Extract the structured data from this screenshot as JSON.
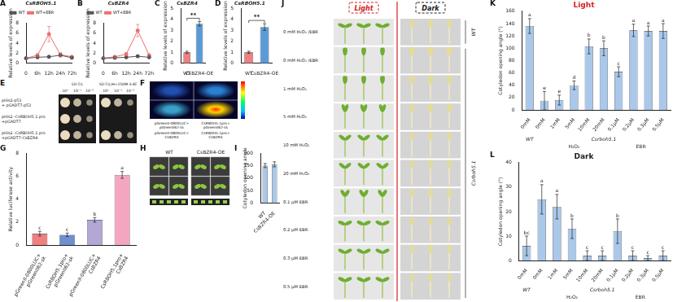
{
  "chart_data": [
    {
      "panel": "A",
      "type": "line",
      "title": "CsRBOH5.1",
      "categories": [
        "0",
        "6h",
        "12h",
        "24h",
        "72h"
      ],
      "y_label": "Relative levels of expression",
      "series": [
        {
          "name": "WT",
          "color": "#555555",
          "marker": "circle",
          "values": [
            1,
            1.2,
            1.3,
            1.6,
            1.1
          ],
          "errors": [
            0.1,
            0.2,
            0.2,
            0.3,
            0.2
          ]
        },
        {
          "name": "WT+EBR",
          "color": "#e8706e",
          "marker": "circle",
          "values": [
            1,
            1.6,
            5.8,
            1.7,
            1.3
          ],
          "errors": [
            0.1,
            0.3,
            1.5,
            0.4,
            0.2
          ]
        }
      ],
      "ylim": [
        0,
        8
      ],
      "yticks": [
        0,
        2,
        4,
        6,
        8
      ],
      "legend": "top",
      "grid": false
    },
    {
      "panel": "B",
      "type": "line",
      "title": "CsBZR4",
      "categories": [
        "0",
        "6h",
        "12h",
        "24h",
        "72h"
      ],
      "y_label": "Relative levels of expression",
      "series": [
        {
          "name": "WT",
          "color": "#555555",
          "marker": "circle",
          "values": [
            1,
            1.1,
            1.2,
            1.4,
            1.2
          ],
          "errors": [
            0.1,
            0.2,
            0.2,
            0.2,
            0.2
          ]
        },
        {
          "name": "WT+EBR",
          "color": "#e8706e",
          "marker": "circle",
          "values": [
            1,
            1.3,
            1.8,
            6.5,
            1.6
          ],
          "errors": [
            0.1,
            0.2,
            0.3,
            1.2,
            0.3
          ]
        }
      ],
      "ylim": [
        0,
        8
      ],
      "yticks": [
        0,
        2,
        4,
        6,
        8
      ],
      "legend": "top",
      "grid": false
    },
    {
      "panel": "C",
      "type": "bar",
      "title": "CsBZR4",
      "categories": [
        "WT",
        "CsBZR4-OE"
      ],
      "y_label": "Relative levels of expression",
      "values": [
        1,
        3.6
      ],
      "errors": [
        0.1,
        0.2
      ],
      "colors": [
        "#f08080",
        "#5b9bd5"
      ],
      "annotation": "**",
      "ylim": [
        0,
        5
      ],
      "yticks": [
        0,
        1,
        2,
        3,
        4,
        5
      ],
      "grid": false
    },
    {
      "panel": "D",
      "type": "bar",
      "title": "CsRBOH5.1",
      "categories": [
        "WT",
        "CsBZR4-OE"
      ],
      "y_label": "Relative levels of expression",
      "values": [
        1,
        3.3
      ],
      "errors": [
        0.1,
        0.3
      ],
      "colors": [
        "#f08080",
        "#5b9bd5"
      ],
      "annotation": "**",
      "ylim": [
        0,
        5
      ],
      "yticks": [
        0,
        1,
        2,
        3,
        4,
        5
      ],
      "grid": false
    },
    {
      "panel": "G",
      "type": "bar",
      "categories": [
        "pGreenII-0800LUC+ pGreenII62-sk",
        "CsRBOH5.1pro+ pGreenII62-sk",
        "pGreenII-0800LUC+ CsBZR4",
        "CsRBOH5.1pro+ CsBZR4"
      ],
      "y_label": "Relative luciferase activity",
      "values": [
        1,
        0.9,
        2.2,
        6.1
      ],
      "errors": [
        0.2,
        0.15,
        0.2,
        0.3
      ],
      "letters": [
        "c",
        "c",
        "b",
        "a"
      ],
      "colors": [
        "#f08080",
        "#6f8fd0",
        "#b4a7d6",
        "#f4a6c0"
      ],
      "ylim": [
        0,
        8
      ],
      "yticks": [
        0,
        2,
        4,
        6,
        8
      ],
      "grid": false
    },
    {
      "panel": "I",
      "type": "bar",
      "categories": [
        "WT",
        "CsBZR4-OE"
      ],
      "y_label": "Cotyledon opening angle",
      "values": [
        150,
        155
      ],
      "errors": [
        8,
        10
      ],
      "color": "#a9c8ea",
      "ylim": [
        0,
        200
      ],
      "yticks": [
        0,
        50,
        100,
        150,
        200
      ],
      "grid": false
    },
    {
      "panel": "K",
      "type": "bar",
      "title": "Light",
      "categories": [
        "0mM",
        "0mM",
        "1mM",
        "5mM",
        "10mM",
        "20mM",
        "0.1μM",
        "0.2μM",
        "0.3μM",
        "0.5μM"
      ],
      "genotype": [
        "WT",
        "Csrboh5.1",
        "Csrboh5.1",
        "Csrboh5.1",
        "Csrboh5.1",
        "Csrboh5.1",
        "Csrboh5.1",
        "Csrboh5.1",
        "Csrboh5.1",
        "Csrboh5.1"
      ],
      "treatment": [
        null,
        "H₂O₂",
        "H₂O₂",
        "H₂O₂",
        "H₂O₂",
        "H₂O₂",
        "EBR",
        "EBR",
        "EBR",
        "EBR"
      ],
      "y_label": "Cotyledon opening angle (°)",
      "values": [
        136,
        15,
        16,
        40,
        103,
        100,
        62,
        129,
        128,
        128
      ],
      "errors": [
        12,
        15,
        8,
        7,
        12,
        12,
        8,
        10,
        8,
        12
      ],
      "letters": [
        "a",
        "e",
        "e",
        "d",
        "b",
        "b",
        "c",
        "a",
        "a",
        "a"
      ],
      "color": "#a9c8ea",
      "ylim": [
        0,
        160
      ],
      "yticks": [
        0,
        20,
        40,
        60,
        80,
        100,
        120,
        140,
        160
      ],
      "grid": false
    },
    {
      "panel": "L",
      "type": "bar",
      "title": "Dark",
      "categories": [
        "0mM",
        "0mM",
        "1mM",
        "5mM",
        "10mM",
        "20mM",
        "0.1μM",
        "0.2μM",
        "0.3μM",
        "0.5μM"
      ],
      "genotype": [
        "WT",
        "Csrboh5.1",
        "Csrboh5.1",
        "Csrboh5.1",
        "Csrboh5.1",
        "Csrboh5.1",
        "Csrboh5.1",
        "Csrboh5.1",
        "Csrboh5.1",
        "Csrboh5.1"
      ],
      "treatment": [
        null,
        "H₂O₂",
        "H₂O₂",
        "H₂O₂",
        "H₂O₂",
        "H₂O₂",
        "EBR",
        "EBR",
        "EBR",
        "EBR"
      ],
      "y_label": "Cotyledon opening angle (°)",
      "values": [
        6,
        25,
        22,
        13,
        2,
        2,
        12,
        2,
        1,
        2
      ],
      "errors": [
        4,
        6,
        5,
        4,
        2,
        2,
        5,
        2,
        1,
        2
      ],
      "letters": [
        "bc",
        "a",
        "a",
        "b",
        "c",
        "c",
        "b",
        "c",
        "c",
        "c"
      ],
      "color": "#a9c8ea",
      "ylim": [
        0,
        40
      ],
      "yticks": [
        0,
        10,
        20,
        30,
        40
      ],
      "grid": false
    }
  ],
  "images": [
    {
      "panel": "E",
      "columns": [
        {
          "medium": "SD-T/L",
          "dilutions": [
            "10⁰",
            "10⁻¹",
            "10⁻²"
          ]
        },
        {
          "medium": "SD-T/L/H+250M 3-AT",
          "dilutions": [
            "10⁰",
            "10⁻¹",
            "10⁻²"
          ]
        }
      ],
      "rows": [
        {
          "label": "pHis2-p53 + pGADT7-p53",
          "growth": [
            [
              true,
              true,
              true
            ],
            [
              true,
              true,
              true
            ]
          ]
        },
        {
          "label": "pHis2 -CsRBOH5.1 pro +pGADT7",
          "growth": [
            [
              true,
              true,
              true
            ],
            [
              false,
              false,
              false
            ]
          ]
        },
        {
          "label": "pHis2 -CsRBOH5.1 pro +pGADT7-CsBZR4",
          "growth": [
            [
              true,
              true,
              true
            ],
            [
              true,
              true,
              true
            ]
          ]
        }
      ]
    },
    {
      "panel": "F",
      "quadrants": [
        "pGreenII-0800LUC+ pGreenII62-sk",
        "CsRBOH5.1pro+ pGreenII62-sk",
        "pGreenII-0800LUC+ CsBZR4",
        "CsRBOH5.1pro+ CsBZR4"
      ]
    },
    {
      "panel": "H",
      "groups": [
        "WT",
        "CsBZR4-OE"
      ]
    },
    {
      "panel": "J",
      "columns": [
        "Light",
        "Dark"
      ],
      "rows": [
        {
          "genotype": "WT",
          "condition": "0 mM H₂O₂ /EBR"
        },
        {
          "genotype": "Csrboh5.1",
          "condition": "0 mM H₂O₂ /EBR"
        },
        {
          "genotype": "Csrboh5.1",
          "condition": "1 mM H₂O₂"
        },
        {
          "genotype": "Csrboh5.1",
          "condition": "5 mM H₂O₂"
        },
        {
          "genotype": "Csrboh5.1",
          "condition": "10 mM H₂O₂"
        },
        {
          "genotype": "Csrboh5.1",
          "condition": "20 mM H₂O₂"
        },
        {
          "genotype": "Csrboh5.1",
          "condition": "0.1 μM EBR"
        },
        {
          "genotype": "Csrboh5.1",
          "condition": "0.2 μM EBR"
        },
        {
          "genotype": "Csrboh5.1",
          "condition": "0.3 μM EBR"
        },
        {
          "genotype": "Csrboh5.1",
          "condition": "0.5 μM EBR"
        }
      ]
    }
  ]
}
